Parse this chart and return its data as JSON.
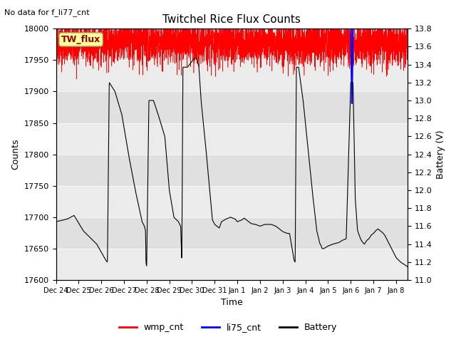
{
  "title": "Twitchel Rice Flux Counts",
  "no_data_text": "No data for f_li77_cnt",
  "tw_flux_label": "TW_flux",
  "xlabel": "Time",
  "ylabel_left": "Counts",
  "ylabel_right": "Battery (V)",
  "left_ylim": [
    17600,
    18000
  ],
  "right_ylim": [
    11.0,
    13.8
  ],
  "left_yticks": [
    17600,
    17650,
    17700,
    17750,
    17800,
    17850,
    17900,
    17950,
    18000
  ],
  "right_yticks": [
    11.0,
    11.2,
    11.4,
    11.6,
    11.8,
    12.0,
    12.2,
    12.4,
    12.6,
    12.8,
    13.0,
    13.2,
    13.4,
    13.6,
    13.8
  ],
  "x_tick_labels": [
    "Dec 24",
    "Dec 25",
    "Dec 26",
    "Dec 27",
    "Dec 28",
    "Dec 29",
    "Dec 30",
    "Dec 31",
    "Jan 1",
    "Jan 2",
    "Jan 3",
    "Jan 4",
    "Jan 5",
    "Jan 6",
    "Jan 7",
    "Jan 8"
  ],
  "background_color": "#ffffff",
  "band_colors": [
    "#ebebeb",
    "#e0e0e0"
  ],
  "wmp_color": "#ff0000",
  "li75_color": "#0000ff",
  "battery_color": "#000000",
  "legend_entries": [
    "wmp_cnt",
    "li75_cnt",
    "Battery"
  ],
  "title_fontsize": 11,
  "axis_label_fontsize": 9,
  "tick_fontsize": 8,
  "nodata_fontsize": 8,
  "twflux_fontsize": 9
}
